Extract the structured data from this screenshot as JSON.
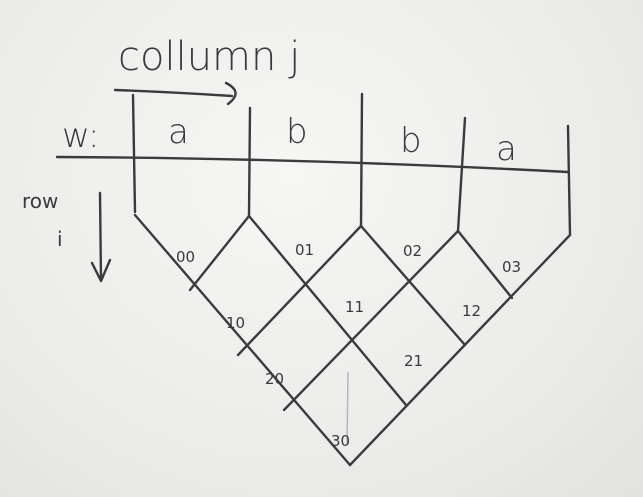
{
  "diagram": {
    "column_label": "collumn j",
    "word_label": "w:",
    "row_label_line1": "row",
    "row_label_line2": "i",
    "letters": [
      "a",
      "b",
      "b",
      "a"
    ],
    "cells": [
      "00",
      "01",
      "02",
      "03",
      "10",
      "11",
      "12",
      "20",
      "21",
      "30"
    ]
  }
}
